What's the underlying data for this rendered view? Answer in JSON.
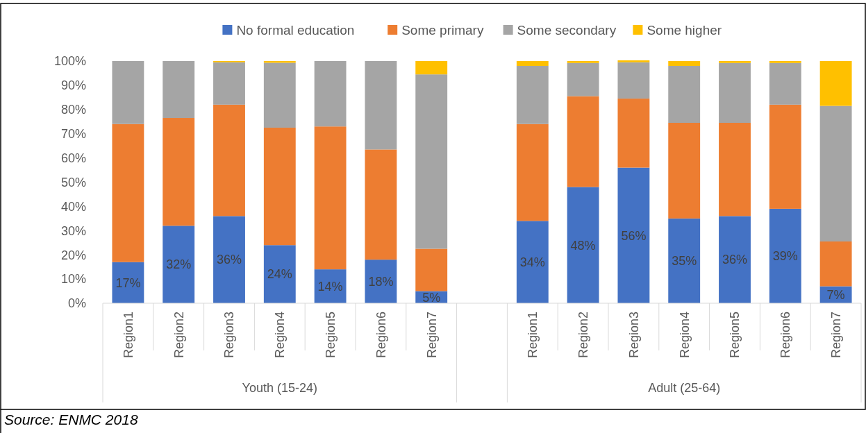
{
  "chart_data": {
    "type": "bar",
    "stacked": true,
    "legend": "top",
    "categories": [
      "Region1",
      "Region2",
      "Region3",
      "Region4",
      "Region5",
      "Region6",
      "Region7",
      null,
      "Region1",
      "Region2",
      "Region3",
      "Region4",
      "Region5",
      "Region6",
      "Region7"
    ],
    "series": [
      {
        "name": "No formal education",
        "color": "#4472c4",
        "values": [
          17,
          32,
          36,
          24,
          14,
          18,
          5,
          null,
          34,
          48,
          56,
          35,
          36,
          39,
          7
        ],
        "value_labels": [
          "17%",
          "32%",
          "36%",
          "24%",
          "14%",
          "18%",
          "5%",
          null,
          "34%",
          "48%",
          "56%",
          "35%",
          "36%",
          "39%",
          "7%"
        ]
      },
      {
        "name": "Some primary",
        "color": "#ed7d31",
        "values": [
          57,
          44.5,
          46,
          48.5,
          59,
          45.5,
          17.5,
          null,
          40,
          37.5,
          28.5,
          39.5,
          38.5,
          43,
          18.5
        ]
      },
      {
        "name": "Some secondary",
        "color": "#a5a5a5",
        "values": [
          26,
          23.5,
          17.5,
          26.8,
          27,
          36.5,
          72,
          null,
          24,
          13.7,
          15,
          23.5,
          24.7,
          17.2,
          56
        ]
      },
      {
        "name": "Some higher",
        "color": "#ffc000",
        "values": [
          0,
          0,
          0.5,
          0.7,
          0,
          0,
          5.5,
          null,
          2,
          0.8,
          0.8,
          2,
          0.8,
          0.8,
          18.5
        ]
      }
    ],
    "ylim": [
      0,
      100
    ],
    "yticks": [
      {
        "value": 0,
        "label": "0%"
      },
      {
        "value": 10,
        "label": "10%"
      },
      {
        "value": 20,
        "label": "20%"
      },
      {
        "value": 30,
        "label": "30%"
      },
      {
        "value": 40,
        "label": "40%"
      },
      {
        "value": 50,
        "label": "50%"
      },
      {
        "value": 60,
        "label": "60%"
      },
      {
        "value": 70,
        "label": "70%"
      },
      {
        "value": 80,
        "label": "80%"
      },
      {
        "value": 90,
        "label": "90%"
      },
      {
        "value": 100,
        "label": "100%"
      }
    ],
    "annotations": [
      "Youth (15-24)",
      "Adult (25-64)",
      "Source: ENMC 2018"
    ]
  }
}
